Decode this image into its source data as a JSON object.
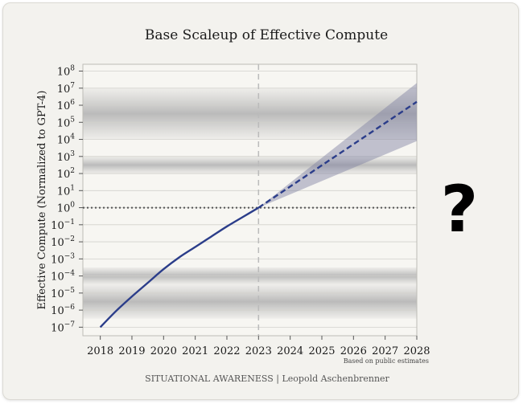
{
  "chart_data": {
    "type": "line",
    "title": "Base Scaleup of Effective Compute",
    "ylabel": "Effective Compute (Normalized to GPT-4)",
    "xlabel": "",
    "x_ticks": [
      "2018",
      "2019",
      "2020",
      "2021",
      "2022",
      "2023",
      "2024",
      "2025",
      "2026",
      "2027",
      "2028"
    ],
    "y_tick_exponents": [
      -7,
      -6,
      -5,
      -4,
      -3,
      -2,
      -1,
      0,
      1,
      2,
      3,
      4,
      5,
      6,
      7,
      8
    ],
    "y_scale": "log",
    "xlim": [
      2017.45,
      2028
    ],
    "ylim_log10": [
      -7.5,
      8.4
    ],
    "series": [
      {
        "style": "solid",
        "color": "#2b3d8a",
        "x": [
          2018.0,
          2018.5,
          2019.0,
          2019.5,
          2020.0,
          2020.5,
          2021.0,
          2021.5,
          2022.0,
          2022.5,
          2023.0
        ],
        "log10_y": [
          -7.0,
          -6.05,
          -5.2,
          -4.4,
          -3.6,
          -2.9,
          -2.3,
          -1.7,
          -1.1,
          -0.55,
          0.0
        ]
      },
      {
        "style": "dashed",
        "color": "#2b3d8a",
        "x": [
          2023.0,
          2028.0
        ],
        "log10_y": [
          0.0,
          6.2
        ]
      }
    ],
    "uncertainty_band": {
      "x": [
        2023.0,
        2028.0
      ],
      "log10_low": [
        0.0,
        3.9
      ],
      "log10_high": [
        0.0,
        7.3
      ]
    },
    "reference_lines": {
      "vertical_x": 2023,
      "horizontal_log10_y": 0
    },
    "band_rows_log10": [
      [
        2,
        3
      ],
      [
        4,
        7
      ],
      [
        -4.5,
        -3.5
      ],
      [
        -6.5,
        -4.5
      ]
    ],
    "annotation": "Based on public estimates",
    "footer": "SITUATIONAL AWARENESS | Leopold Aschenbrenner",
    "side_mark": "?"
  },
  "colors": {
    "frame_bg": "#f3f2ee",
    "plot_bg": "#f7f6f2",
    "line": "#2b3d8a",
    "band": "#7c7ea0",
    "ref": "#555555"
  }
}
